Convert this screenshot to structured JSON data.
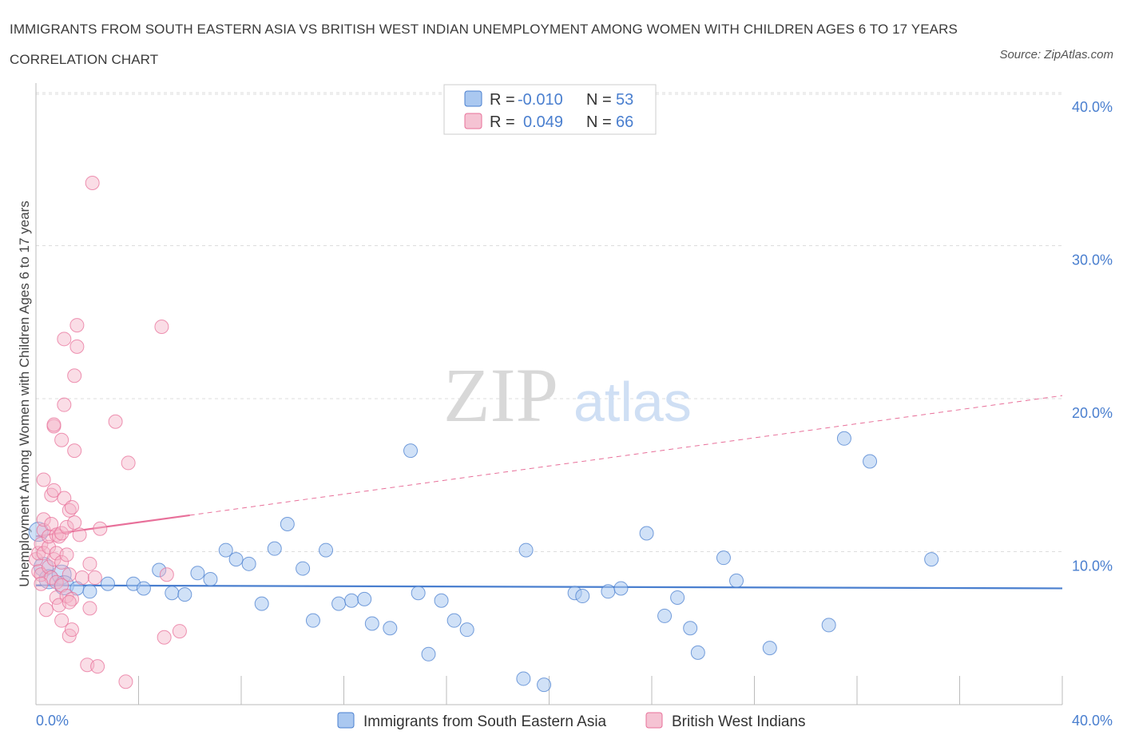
{
  "title": "IMMIGRANTS FROM SOUTH EASTERN ASIA VS BRITISH WEST INDIAN UNEMPLOYMENT AMONG WOMEN WITH CHILDREN AGES 6 TO 17 YEARS CORRELATION CHART",
  "source": "Source: ZipAtlas.com",
  "watermark": {
    "zip": "ZIP",
    "atlas": "atlas"
  },
  "colors": {
    "blue": "#4a7fcf",
    "blue_fill": "#aac8f0",
    "pink": "#e8709a",
    "pink_fill": "#f5b3c8",
    "grid": "#dddddd"
  },
  "chart_data": {
    "type": "scatter",
    "ylabel": "Unemployment Among Women with Children Ages 6 to 17 years",
    "xlim": [
      0,
      40
    ],
    "ylim": [
      0,
      40
    ],
    "y_ticks": [
      {
        "value": 10,
        "label": "10.0%"
      },
      {
        "value": 20,
        "label": "20.0%"
      },
      {
        "value": 30,
        "label": "30.0%"
      },
      {
        "value": 40,
        "label": "40.0%"
      }
    ],
    "x_tick_labels": [
      {
        "value": 0,
        "label": "0.0%"
      },
      {
        "value": 40,
        "label": "40.0%"
      }
    ],
    "legend": {
      "rows": [
        {
          "r_label": "R =",
          "r_value": "-0.010",
          "n_label": "N =",
          "n_value": "53"
        },
        {
          "r_label": "R =",
          "r_value": "0.049",
          "n_label": "N =",
          "n_value": "66"
        }
      ]
    },
    "series": [
      {
        "name": "Immigrants from South Eastern Asia",
        "trend": {
          "x": [
            0,
            40
          ],
          "y": [
            7.8,
            7.6
          ],
          "style": "solid"
        },
        "points": [
          [
            0.1,
            11.3
          ],
          [
            0.3,
            9.0
          ],
          [
            0.5,
            8.2
          ],
          [
            1.0,
            8.5
          ],
          [
            1.1,
            7.8
          ],
          [
            1.6,
            7.6
          ],
          [
            2.1,
            7.4
          ],
          [
            2.8,
            7.9
          ],
          [
            3.8,
            7.9
          ],
          [
            4.2,
            7.6
          ],
          [
            4.8,
            8.8
          ],
          [
            5.3,
            7.3
          ],
          [
            5.8,
            7.2
          ],
          [
            6.3,
            8.6
          ],
          [
            6.8,
            8.2
          ],
          [
            7.4,
            10.1
          ],
          [
            7.8,
            9.5
          ],
          [
            8.3,
            9.2
          ],
          [
            8.8,
            6.6
          ],
          [
            9.3,
            10.2
          ],
          [
            9.8,
            11.8
          ],
          [
            10.4,
            8.9
          ],
          [
            10.8,
            5.5
          ],
          [
            11.3,
            10.1
          ],
          [
            11.8,
            6.6
          ],
          [
            12.3,
            6.8
          ],
          [
            12.8,
            6.9
          ],
          [
            13.1,
            5.3
          ],
          [
            13.8,
            5.0
          ],
          [
            14.6,
            16.6
          ],
          [
            14.9,
            7.3
          ],
          [
            15.3,
            3.3
          ],
          [
            15.8,
            6.8
          ],
          [
            16.3,
            5.5
          ],
          [
            16.8,
            4.9
          ],
          [
            19.0,
            1.7
          ],
          [
            19.1,
            10.1
          ],
          [
            19.8,
            1.3
          ],
          [
            21.0,
            7.3
          ],
          [
            21.3,
            7.1
          ],
          [
            22.3,
            7.4
          ],
          [
            22.8,
            7.6
          ],
          [
            23.8,
            11.2
          ],
          [
            24.5,
            5.8
          ],
          [
            25.0,
            7.0
          ],
          [
            25.5,
            5.0
          ],
          [
            25.8,
            3.4
          ],
          [
            26.8,
            9.6
          ],
          [
            27.3,
            8.1
          ],
          [
            28.6,
            3.7
          ],
          [
            30.9,
            5.2
          ],
          [
            31.5,
            17.4
          ],
          [
            32.5,
            15.9
          ],
          [
            34.9,
            9.5
          ]
        ]
      },
      {
        "name": "British West Indians",
        "trend": {
          "x": [
            0,
            40
          ],
          "y": [
            11.0,
            20.2
          ],
          "style": "solid-then-dashed",
          "solid_until_x": 6.0
        },
        "points": [
          [
            0.0,
            9.5
          ],
          [
            0.1,
            8.7
          ],
          [
            0.1,
            9.9
          ],
          [
            0.2,
            10.5
          ],
          [
            0.2,
            8.5
          ],
          [
            0.3,
            9.9
          ],
          [
            0.3,
            11.4
          ],
          [
            0.3,
            12.1
          ],
          [
            0.3,
            14.7
          ],
          [
            0.4,
            6.2
          ],
          [
            0.5,
            9.0
          ],
          [
            0.5,
            10.3
          ],
          [
            0.5,
            11.0
          ],
          [
            0.6,
            8.3
          ],
          [
            0.6,
            11.8
          ],
          [
            0.6,
            13.7
          ],
          [
            0.7,
            9.5
          ],
          [
            0.7,
            14.0
          ],
          [
            0.7,
            18.2
          ],
          [
            0.7,
            18.3
          ],
          [
            0.8,
            7.0
          ],
          [
            0.8,
            8.0
          ],
          [
            0.8,
            9.9
          ],
          [
            0.8,
            11.1
          ],
          [
            0.9,
            6.5
          ],
          [
            0.9,
            11.0
          ],
          [
            1.0,
            5.5
          ],
          [
            1.0,
            7.8
          ],
          [
            1.0,
            9.3
          ],
          [
            1.0,
            11.2
          ],
          [
            1.0,
            17.3
          ],
          [
            1.1,
            13.5
          ],
          [
            1.1,
            23.9
          ],
          [
            1.1,
            19.6
          ],
          [
            1.2,
            7.1
          ],
          [
            1.2,
            9.8
          ],
          [
            1.2,
            11.6
          ],
          [
            1.3,
            4.5
          ],
          [
            1.3,
            8.5
          ],
          [
            1.3,
            12.7
          ],
          [
            1.4,
            6.9
          ],
          [
            1.4,
            12.9
          ],
          [
            1.4,
            4.9
          ],
          [
            1.5,
            11.9
          ],
          [
            1.5,
            16.6
          ],
          [
            1.5,
            21.5
          ],
          [
            1.6,
            23.4
          ],
          [
            1.6,
            24.8
          ],
          [
            1.7,
            11.1
          ],
          [
            1.8,
            8.3
          ],
          [
            2.0,
            2.6
          ],
          [
            2.1,
            9.2
          ],
          [
            2.1,
            6.3
          ],
          [
            2.2,
            34.1
          ],
          [
            2.3,
            8.3
          ],
          [
            2.4,
            2.5
          ],
          [
            2.5,
            11.5
          ],
          [
            3.1,
            18.5
          ],
          [
            3.5,
            1.5
          ],
          [
            3.6,
            15.8
          ],
          [
            4.9,
            24.7
          ],
          [
            5.0,
            4.4
          ],
          [
            5.1,
            8.5
          ],
          [
            5.6,
            4.8
          ],
          [
            0.2,
            7.9
          ],
          [
            1.3,
            6.7
          ]
        ]
      }
    ],
    "bottom_legend": [
      "Immigrants from South Eastern Asia",
      "British West Indians"
    ]
  }
}
